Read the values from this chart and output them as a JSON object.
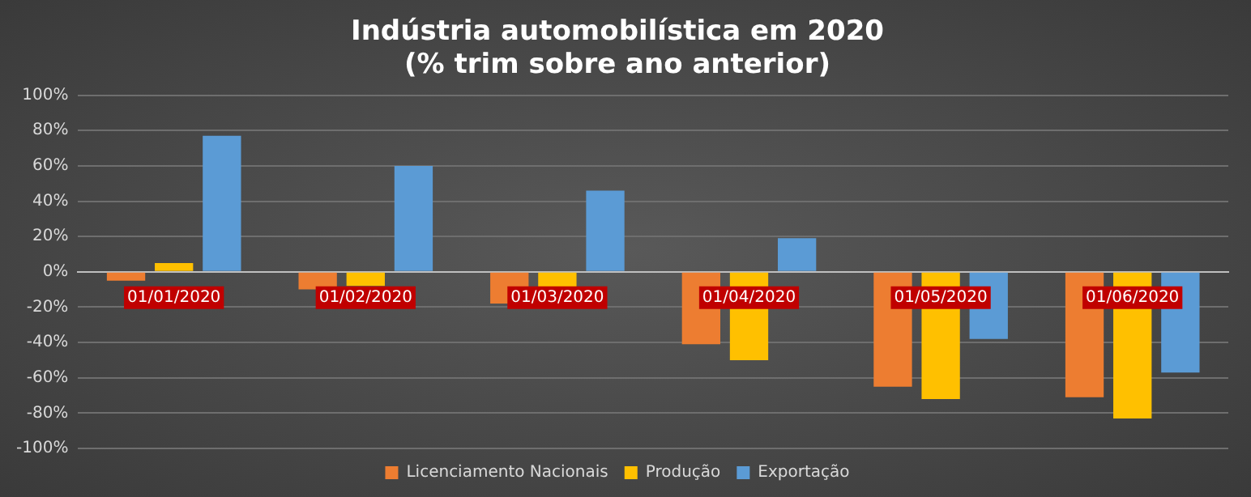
{
  "chart_data": {
    "type": "bar",
    "title": "Indústria automobilística em 2020\n(% trim sobre ano anterior)",
    "categories": [
      "01/01/2020",
      "01/02/2020",
      "01/03/2020",
      "01/04/2020",
      "01/05/2020",
      "01/06/2020"
    ],
    "series": [
      {
        "name": "Licenciamento Nacionais",
        "color": "#ed7d31",
        "values": [
          -5,
          -10,
          -18,
          -41,
          -65,
          -71
        ]
      },
      {
        "name": "Produção",
        "color": "#ffc000",
        "values": [
          5,
          -8,
          -10,
          -50,
          -72,
          -83
        ]
      },
      {
        "name": "Exportação",
        "color": "#5b9bd5",
        "values": [
          77,
          60,
          46,
          19,
          -38,
          -57
        ]
      }
    ],
    "ylim": [
      -100,
      100
    ],
    "yticks": [
      {
        "value": -100,
        "label": "-100%"
      },
      {
        "value": -80,
        "label": "-80%"
      },
      {
        "value": -60,
        "label": "-60%"
      },
      {
        "value": -40,
        "label": "-40%"
      },
      {
        "value": -20,
        "label": "-20%"
      },
      {
        "value": 0,
        "label": "0%"
      },
      {
        "value": 20,
        "label": "20%"
      },
      {
        "value": 40,
        "label": "40%"
      },
      {
        "value": 60,
        "label": "60%"
      },
      {
        "value": 80,
        "label": "80%"
      },
      {
        "value": 100,
        "label": "100%"
      }
    ],
    "grid": "y",
    "legend": "bottom"
  }
}
